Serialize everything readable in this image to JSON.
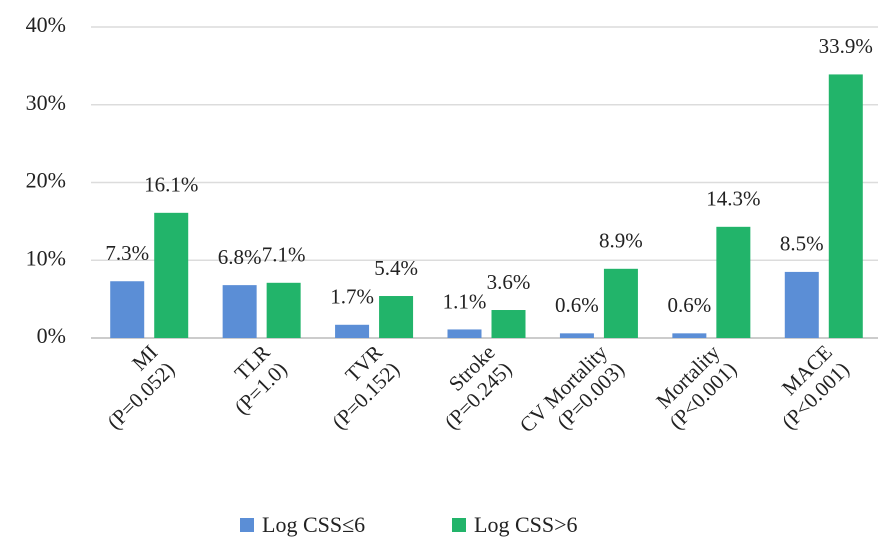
{
  "chart_data": {
    "type": "bar",
    "categories": [
      [
        "MI",
        "(P=0.052)"
      ],
      [
        "TLR",
        "(P=1.0)"
      ],
      [
        "TVR",
        "(P=0.152)"
      ],
      [
        "Stroke",
        "(P=0.245)"
      ],
      [
        "CV Mortality",
        "(P=0.003)"
      ],
      [
        "Mortality",
        "(P<0.001)"
      ],
      [
        "MACE",
        "(P<0.001)"
      ]
    ],
    "series": [
      {
        "name": "Log CSS≤6",
        "color": "#5b8ed6",
        "values": [
          7.3,
          6.8,
          1.7,
          1.1,
          0.6,
          0.6,
          8.5
        ],
        "value_labels": [
          "7.3%",
          "6.8%",
          "1.7%",
          "1.1%",
          "0.6%",
          "0.6%",
          "8.5%"
        ]
      },
      {
        "name": "Log CSS>6",
        "color": "#22b46a",
        "values": [
          16.1,
          7.1,
          5.4,
          3.6,
          8.9,
          14.3,
          33.9
        ],
        "value_labels": [
          "16.1%",
          "7.1%",
          "5.4%",
          "3.6%",
          "8.9%",
          "14.3%",
          "33.9%"
        ]
      }
    ],
    "ylim": [
      0,
      40
    ],
    "yticks": [
      {
        "value": 0,
        "label": "0%"
      },
      {
        "value": 10,
        "label": "10%"
      },
      {
        "value": 20,
        "label": "20%"
      },
      {
        "value": 30,
        "label": "30%"
      },
      {
        "value": 40,
        "label": "40%"
      }
    ],
    "grid": true
  }
}
